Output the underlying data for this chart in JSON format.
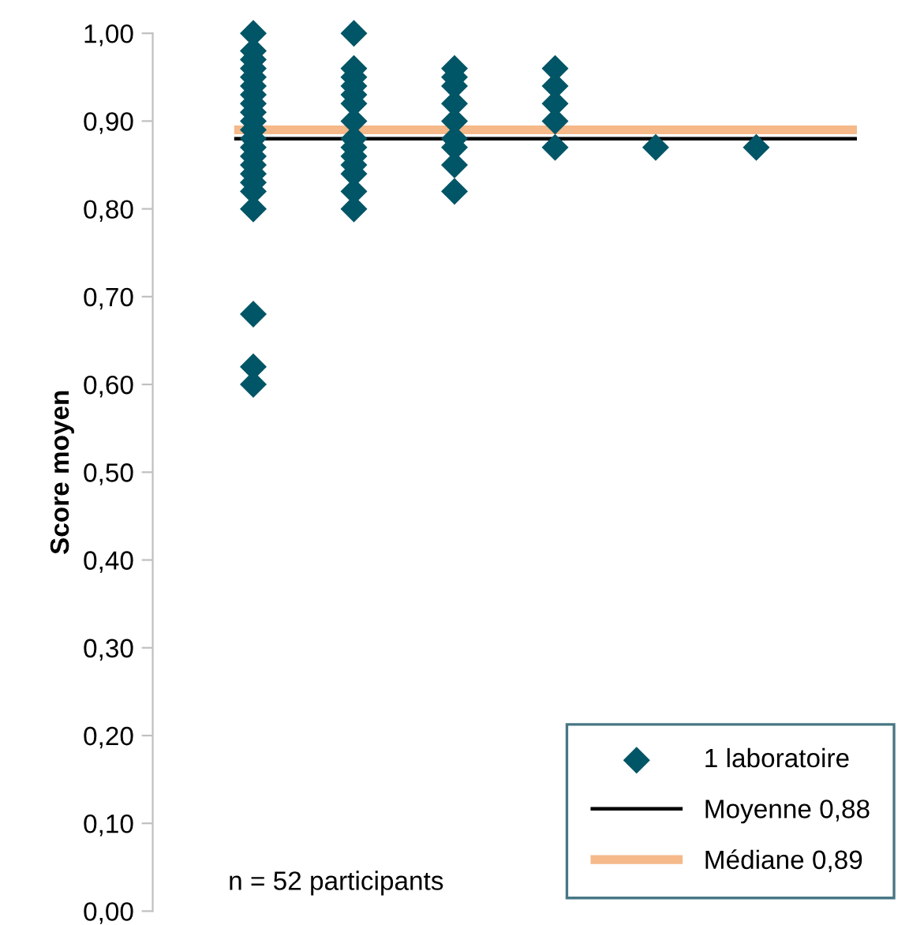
{
  "chart_data": {
    "type": "scatter",
    "ylabel": "Score moyen",
    "categories": [
      null,
      null,
      null,
      null,
      null,
      null,
      null
    ],
    "marker": "diamond",
    "series": [
      {
        "name": "1 laboratoire",
        "color": "#005566",
        "values": [
          0.6,
          0.8,
          0.82,
          0.87,
          0.87,
          0.87,
          null
        ]
      },
      {
        "color": "#005566",
        "values": [
          0.62,
          0.82,
          0.85,
          0.9,
          null,
          null,
          null
        ]
      },
      {
        "color": "#005566",
        "values": [
          0.68,
          0.84,
          0.87,
          0.92,
          null,
          null,
          null
        ]
      },
      {
        "color": "#005566",
        "values": [
          0.8,
          0.85,
          0.88,
          0.94,
          null,
          null,
          null
        ]
      },
      {
        "color": "#005566",
        "values": [
          0.82,
          0.86,
          0.9,
          0.96,
          null,
          null,
          null
        ]
      },
      {
        "color": "#005566",
        "values": [
          0.83,
          0.87,
          0.92,
          null,
          null,
          null,
          null
        ]
      },
      {
        "color": "#005566",
        "values": [
          0.84,
          0.88,
          0.94,
          null,
          null,
          null,
          null
        ]
      },
      {
        "color": "#005566",
        "values": [
          0.85,
          0.9,
          0.95,
          null,
          null,
          null,
          null
        ]
      },
      {
        "color": "#005566",
        "values": [
          0.86,
          0.92,
          0.96,
          null,
          null,
          null,
          null
        ]
      },
      {
        "color": "#005566",
        "values": [
          0.87,
          0.93,
          null,
          null,
          null,
          null,
          null
        ]
      },
      {
        "color": "#005566",
        "values": [
          0.88,
          0.94,
          null,
          null,
          null,
          null,
          null
        ]
      },
      {
        "color": "#005566",
        "values": [
          0.89,
          0.95,
          null,
          null,
          null,
          null,
          null
        ]
      },
      {
        "color": "#005566",
        "values": [
          0.9,
          0.96,
          null,
          null,
          null,
          null,
          null
        ]
      },
      {
        "color": "#005566",
        "values": [
          0.91,
          1.0,
          null,
          null,
          null,
          null,
          null
        ]
      },
      {
        "color": "#005566",
        "values": [
          0.92,
          null,
          null,
          null,
          null,
          null,
          null
        ]
      },
      {
        "color": "#005566",
        "values": [
          0.93,
          null,
          null,
          null,
          null,
          null,
          null
        ]
      },
      {
        "color": "#005566",
        "values": [
          0.94,
          null,
          null,
          null,
          null,
          null,
          null
        ]
      },
      {
        "color": "#005566",
        "values": [
          0.95,
          null,
          null,
          null,
          null,
          null,
          null
        ]
      },
      {
        "color": "#005566",
        "values": [
          0.96,
          null,
          null,
          null,
          null,
          null,
          null
        ]
      },
      {
        "color": "#005566",
        "values": [
          0.97,
          null,
          null,
          null,
          null,
          null,
          null
        ]
      },
      {
        "color": "#005566",
        "values": [
          0.98,
          null,
          null,
          null,
          null,
          null,
          null
        ]
      },
      {
        "color": "#005566",
        "values": [
          1.0,
          null,
          null,
          null,
          null,
          null,
          null
        ]
      }
    ],
    "ref_lines": [
      {
        "axis": "y",
        "value": 0.88,
        "label": "Moyenne 0,88",
        "color": "#000000"
      },
      {
        "axis": "y",
        "value": 0.89,
        "label": "Médiane 0,89",
        "color": "#f5b98a"
      }
    ],
    "ylim": [
      0,
      1
    ],
    "yticks": [
      {
        "value": 0,
        "label": "0,00"
      },
      {
        "value": 0.1,
        "label": "0,10"
      },
      {
        "value": 0.2,
        "label": "0,20"
      },
      {
        "value": 0.3,
        "label": "0,30"
      },
      {
        "value": 0.4,
        "label": "0,40"
      },
      {
        "value": 0.5,
        "label": "0,50"
      },
      {
        "value": 0.6,
        "label": "0,60"
      },
      {
        "value": 0.7,
        "label": "0,70"
      },
      {
        "value": 0.8,
        "label": "0,80"
      },
      {
        "value": 0.9,
        "label": "0,90"
      },
      {
        "value": 1,
        "label": "1,00"
      }
    ],
    "tick_labels": "y",
    "legend": "bottom right",
    "annotations": [
      "n = 52 participants"
    ]
  }
}
